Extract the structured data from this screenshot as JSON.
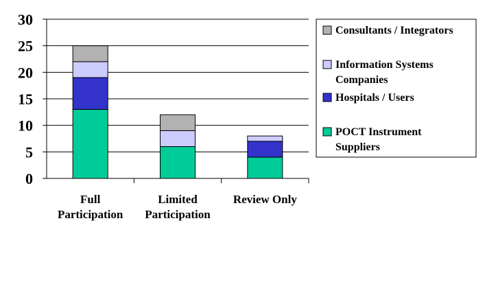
{
  "chart_data": {
    "type": "bar",
    "stacked": true,
    "categories": [
      [
        "Full",
        "Participation"
      ],
      [
        "Limited",
        "Participation"
      ],
      [
        "Review Only"
      ]
    ],
    "series": [
      {
        "name": [
          "POCT Instrument",
          "Suppliers"
        ],
        "color": "#00cc99",
        "values": [
          13,
          6,
          4
        ]
      },
      {
        "name": [
          "Hospitals / Users"
        ],
        "color": "#3333cc",
        "values": [
          6,
          0,
          3
        ]
      },
      {
        "name": [
          "Information Systems",
          "Companies"
        ],
        "color": "#ccccff",
        "values": [
          3,
          3,
          1
        ]
      },
      {
        "name": [
          "Consultants / Integrators"
        ],
        "color": "#b2b2b2",
        "values": [
          3,
          3,
          0
        ]
      }
    ],
    "ylim": [
      0,
      30
    ],
    "yticks": [
      "0",
      "5",
      "10",
      "15",
      "20",
      "25",
      "30"
    ],
    "grid": true,
    "legend": "right"
  }
}
